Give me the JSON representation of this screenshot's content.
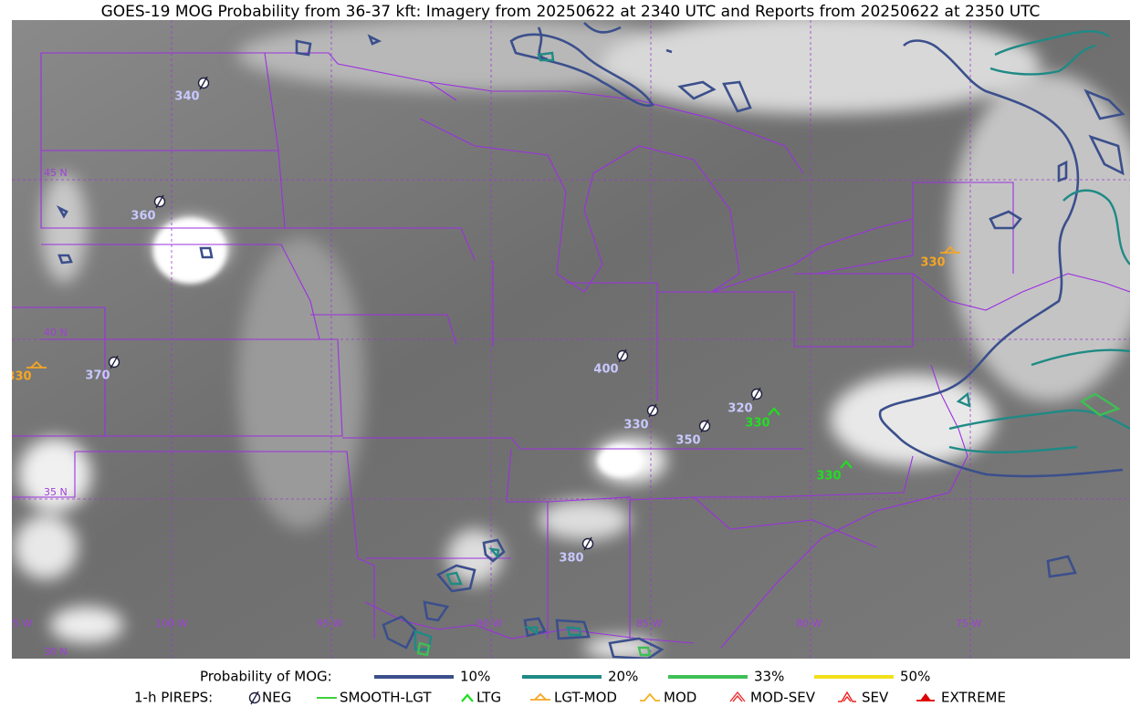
{
  "title": "GOES-19 MOG Probability from 36-37 kft: Imagery from 20250622 at 2340 UTC and Reports from 20250622 at 2350 UTC",
  "map": {
    "lat_labels": [
      "45 N",
      "40 N",
      "35 N",
      "30 N"
    ],
    "lon_labels": [
      "105 W",
      "100 W",
      "95 W",
      "90 W",
      "85 W",
      "80 W",
      "75 W"
    ],
    "reports": [
      {
        "type": "NEG",
        "level": "340"
      },
      {
        "type": "NEG",
        "level": "360"
      },
      {
        "type": "NEG",
        "level": "370"
      },
      {
        "type": "LGT-MOD",
        "level": "330"
      },
      {
        "type": "NEG",
        "level": "400"
      },
      {
        "type": "NEG",
        "level": "330"
      },
      {
        "type": "NEG",
        "level": "350"
      },
      {
        "type": "NEG",
        "level": "320"
      },
      {
        "type": "LTG",
        "level": "330"
      },
      {
        "type": "LTG",
        "level": "330"
      },
      {
        "type": "LGT-MOD",
        "level": "330"
      },
      {
        "type": "NEG",
        "level": "380"
      }
    ]
  },
  "legend": {
    "probability_title": "Probability of MOG:",
    "probability": [
      {
        "label": "10%",
        "color": "#3b4f8c"
      },
      {
        "label": "20%",
        "color": "#1f8a85"
      },
      {
        "label": "33%",
        "color": "#3fbf55"
      },
      {
        "label": "50%",
        "color": "#f2e01a"
      }
    ],
    "pireps_title": "1-h PIREPS:",
    "pireps": [
      {
        "label": "NEG",
        "color": "#c8c8ff"
      },
      {
        "label": "SMOOTH-LGT",
        "color": "#22cc22"
      },
      {
        "label": "LTG",
        "color": "#22dd22"
      },
      {
        "label": "LGT-MOD",
        "color": "#f5a623"
      },
      {
        "label": "MOD",
        "color": "#f5b020"
      },
      {
        "label": "MOD-SEV",
        "color": "#ee3333"
      },
      {
        "label": "SEV",
        "color": "#ee2222"
      },
      {
        "label": "EXTREME",
        "color": "#dd0000"
      }
    ]
  }
}
